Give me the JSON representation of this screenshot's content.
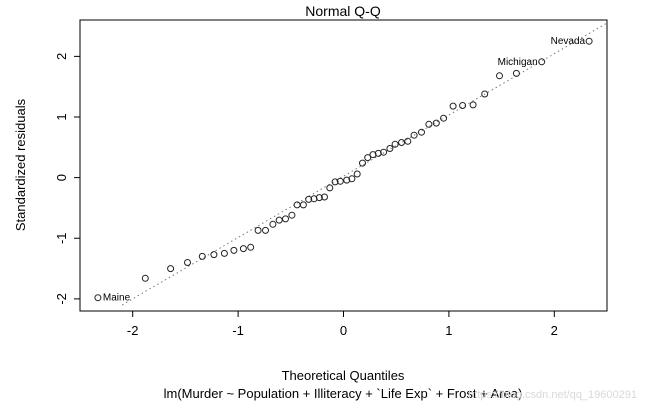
{
  "chart_data": {
    "type": "scatter",
    "title": "Normal Q-Q",
    "xlabel": "Theoretical Quantiles",
    "ylabel": "Standardized residuals",
    "subtitle": "lm(Murder ~ Population + Illiteracy + `Life Exp` + Frost + Area)",
    "watermark": "https://blog.csdn.net/qq_19600291",
    "xlim": [
      -2.5,
      2.5
    ],
    "ylim": [
      -2.2,
      2.6
    ],
    "xticks": [
      -2,
      -1,
      0,
      1,
      2
    ],
    "yticks": [
      -2,
      -1,
      0,
      1,
      2
    ],
    "grid": false,
    "reference_line": "dotted",
    "annotations": [
      {
        "label": "Maine",
        "x": -2.33,
        "y": -1.98
      },
      {
        "label": "Michigan",
        "x": 1.88,
        "y": 1.91
      },
      {
        "label": "Nevada",
        "x": 2.33,
        "y": 2.25
      }
    ],
    "x": [
      -2.33,
      -1.88,
      -1.64,
      -1.48,
      -1.34,
      -1.23,
      -1.13,
      -1.04,
      -0.95,
      -0.88,
      -0.81,
      -0.74,
      -0.67,
      -0.61,
      -0.55,
      -0.49,
      -0.44,
      -0.38,
      -0.33,
      -0.28,
      -0.23,
      -0.18,
      -0.13,
      -0.08,
      -0.03,
      0.03,
      0.08,
      0.13,
      0.18,
      0.23,
      0.28,
      0.33,
      0.38,
      0.44,
      0.49,
      0.55,
      0.61,
      0.67,
      0.74,
      0.81,
      0.88,
      0.95,
      1.04,
      1.13,
      1.23,
      1.34,
      1.48,
      1.64,
      1.88,
      2.33
    ],
    "y": [
      -1.98,
      -1.66,
      -1.5,
      -1.4,
      -1.3,
      -1.27,
      -1.25,
      -1.2,
      -1.17,
      -1.15,
      -0.87,
      -0.87,
      -0.77,
      -0.7,
      -0.68,
      -0.62,
      -0.45,
      -0.45,
      -0.36,
      -0.35,
      -0.33,
      -0.32,
      -0.17,
      -0.07,
      -0.06,
      -0.04,
      -0.02,
      0.06,
      0.24,
      0.33,
      0.38,
      0.4,
      0.42,
      0.48,
      0.55,
      0.58,
      0.6,
      0.7,
      0.75,
      0.88,
      0.9,
      0.98,
      1.18,
      1.19,
      1.2,
      1.38,
      1.68,
      1.72,
      1.91,
      2.25
    ]
  }
}
